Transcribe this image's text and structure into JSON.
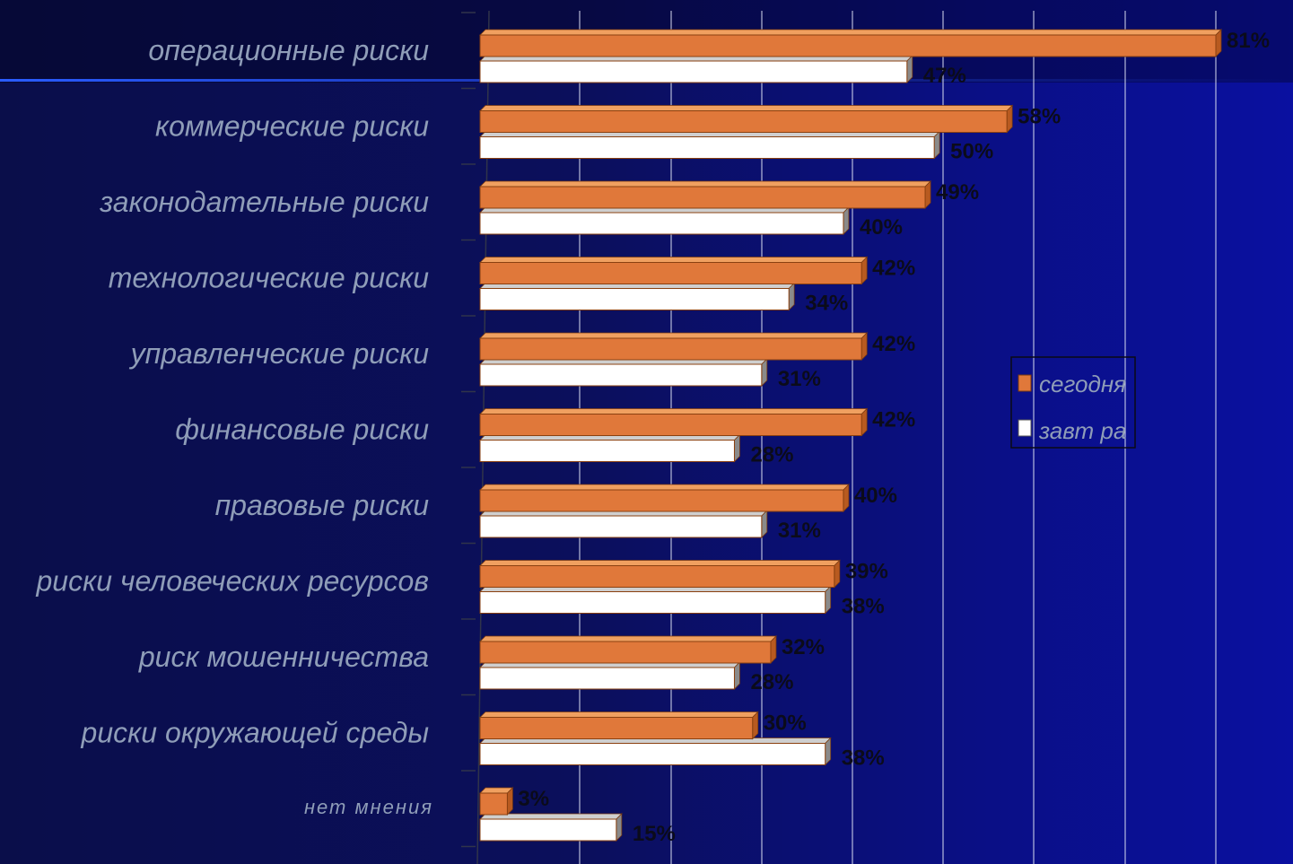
{
  "chart_data": {
    "type": "bar",
    "orientation": "horizontal",
    "categories": [
      "операционные риски",
      "коммерческие риски",
      "законодательные риски",
      "технологические риски",
      "управленческие риски",
      "финансовые риски",
      "правовые риски",
      "риски человеческих ресурсов",
      "риск мошенничества",
      "риски окружающей среды",
      "нет мнения"
    ],
    "series": [
      {
        "name": "сегодня",
        "values": [
          81,
          58,
          49,
          42,
          42,
          42,
          40,
          39,
          32,
          30,
          3
        ],
        "labels": [
          "81%",
          "58%",
          "49%",
          "42%",
          "42%",
          "42%",
          "40%",
          "39%",
          "32%",
          "30%",
          "3%"
        ]
      },
      {
        "name": "завт ра",
        "values": [
          47,
          50,
          40,
          34,
          31,
          28,
          31,
          38,
          28,
          38,
          15
        ],
        "labels": [
          "47%",
          "50%",
          "40%",
          "34%",
          "31%",
          "28%",
          "31%",
          "38%",
          "28%",
          "38%",
          "15%"
        ]
      }
    ],
    "xlim": [
      0,
      81
    ],
    "grid": true,
    "legend_position": "right",
    "colors": {
      "today": "#e0783a",
      "tomorrow": "#ffffff",
      "grid": "#d8dcf0",
      "label": "#8f9db8",
      "value_label": "#0b0b1a"
    }
  }
}
